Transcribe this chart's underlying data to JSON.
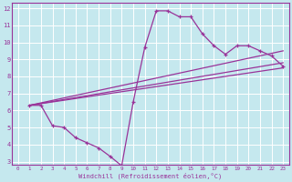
{
  "title": "",
  "xlabel": "Windchill (Refroidissement éolien,°C)",
  "bg_color": "#c5e8ee",
  "grid_color": "#ffffff",
  "line_color": "#993399",
  "axis_color": "#993399",
  "xlim": [
    -0.5,
    23.5
  ],
  "ylim": [
    2.8,
    12.3
  ],
  "xticks": [
    0,
    1,
    2,
    3,
    4,
    5,
    6,
    7,
    8,
    9,
    10,
    11,
    12,
    13,
    14,
    15,
    16,
    17,
    18,
    19,
    20,
    21,
    22,
    23
  ],
  "yticks": [
    3,
    4,
    5,
    6,
    7,
    8,
    9,
    10,
    11,
    12
  ],
  "curve1_x": [
    1,
    2,
    3,
    4,
    5,
    6,
    7,
    8,
    9,
    10,
    11,
    12,
    13,
    14,
    15,
    16,
    17,
    18,
    19,
    20,
    21,
    22,
    23
  ],
  "curve1_y": [
    6.3,
    6.3,
    5.1,
    5.0,
    4.4,
    4.1,
    3.8,
    3.3,
    2.75,
    6.5,
    9.7,
    11.85,
    11.85,
    11.5,
    11.5,
    10.5,
    9.8,
    9.3,
    9.8,
    9.8,
    9.5,
    9.2,
    8.6
  ],
  "line2_x": [
    1,
    23
  ],
  "line2_y": [
    6.3,
    9.5
  ],
  "line3_x": [
    1,
    23
  ],
  "line3_y": [
    6.3,
    8.8
  ],
  "line4_x": [
    1,
    23
  ],
  "line4_y": [
    6.3,
    8.5
  ]
}
